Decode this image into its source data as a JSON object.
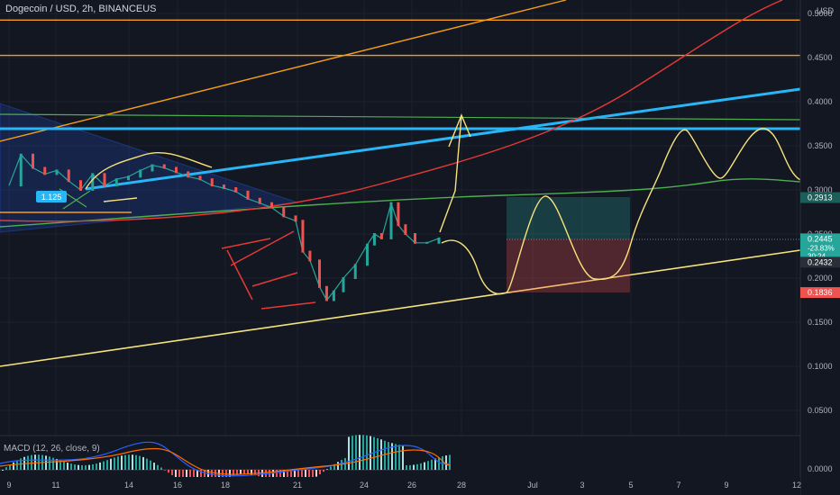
{
  "header": {
    "title": "Dogecoin / USD, 2h, BINANCEUS"
  },
  "macd": {
    "label": "MACD (12, 26, close, 9)",
    "zero_label": "0.0000"
  },
  "colors": {
    "background": "#131722",
    "up": "#26a69a",
    "down": "#ef5350",
    "drawing_yellow": "#f7e37b",
    "trend_blue": "#29b6f6",
    "orange": "#f59c1a",
    "green_line": "#4caf50",
    "red_curve": "#e53935"
  },
  "chart_data": {
    "type": "line",
    "title": "Dogecoin / USD, 2h, BINANCEUS",
    "x_axis": {
      "ticks": [
        "9",
        "11",
        "14",
        "16",
        "18",
        "21",
        "24",
        "26",
        "28",
        "Jul",
        "3",
        "5",
        "7",
        "9",
        "12"
      ]
    },
    "y_axis": {
      "unit": "USD",
      "ticks": [
        "0.5000",
        "0.4500",
        "0.4000",
        "0.3500",
        "0.3000",
        "0.2500",
        "0.2000",
        "0.1500",
        "0.1000",
        "0.0500"
      ],
      "range": [
        0.02,
        0.52
      ]
    },
    "price_tags": [
      {
        "label": "0.2913",
        "value": 0.2913,
        "color": "#1b5e5a"
      },
      {
        "label": "0.2445",
        "value": 0.2445,
        "color": "#26a69a",
        "sub": [
          "-23.83%",
          "30:24"
        ]
      },
      {
        "label": "0.2432",
        "value": 0.218,
        "color": "#2a2e39"
      },
      {
        "label": "0.1836",
        "value": 0.1836,
        "color": "#ef5350"
      }
    ],
    "annotation_tag": "1.125",
    "horizontal_levels": [
      0.4925,
      0.4525,
      0.37,
      0.382,
      0.244
    ],
    "series": [
      {
        "name": "",
        "type": "close",
        "x": [
          9.0,
          9.5,
          10.0,
          10.5,
          11.0,
          11.5,
          12.0,
          12.5,
          13.0,
          13.5,
          14.0,
          14.5,
          15.0,
          15.5,
          16.0,
          16.5,
          17.0,
          17.5,
          18.0,
          18.5,
          19.0,
          19.5,
          20.0,
          20.5,
          21.0,
          21.3,
          21.6,
          22.0,
          22.3,
          22.6,
          23.0,
          23.5,
          24.0,
          24.3,
          24.6,
          25.0,
          25.3,
          25.6,
          26.0,
          26.5,
          27.0
        ],
        "values": [
          0.305,
          0.34,
          0.325,
          0.318,
          0.322,
          0.31,
          0.3,
          0.318,
          0.305,
          0.312,
          0.315,
          0.322,
          0.328,
          0.325,
          0.32,
          0.315,
          0.312,
          0.305,
          0.302,
          0.298,
          0.29,
          0.285,
          0.28,
          0.27,
          0.265,
          0.23,
          0.22,
          0.19,
          0.175,
          0.185,
          0.2,
          0.215,
          0.238,
          0.25,
          0.245,
          0.285,
          0.26,
          0.25,
          0.24,
          0.24,
          0.245
        ]
      }
    ]
  }
}
